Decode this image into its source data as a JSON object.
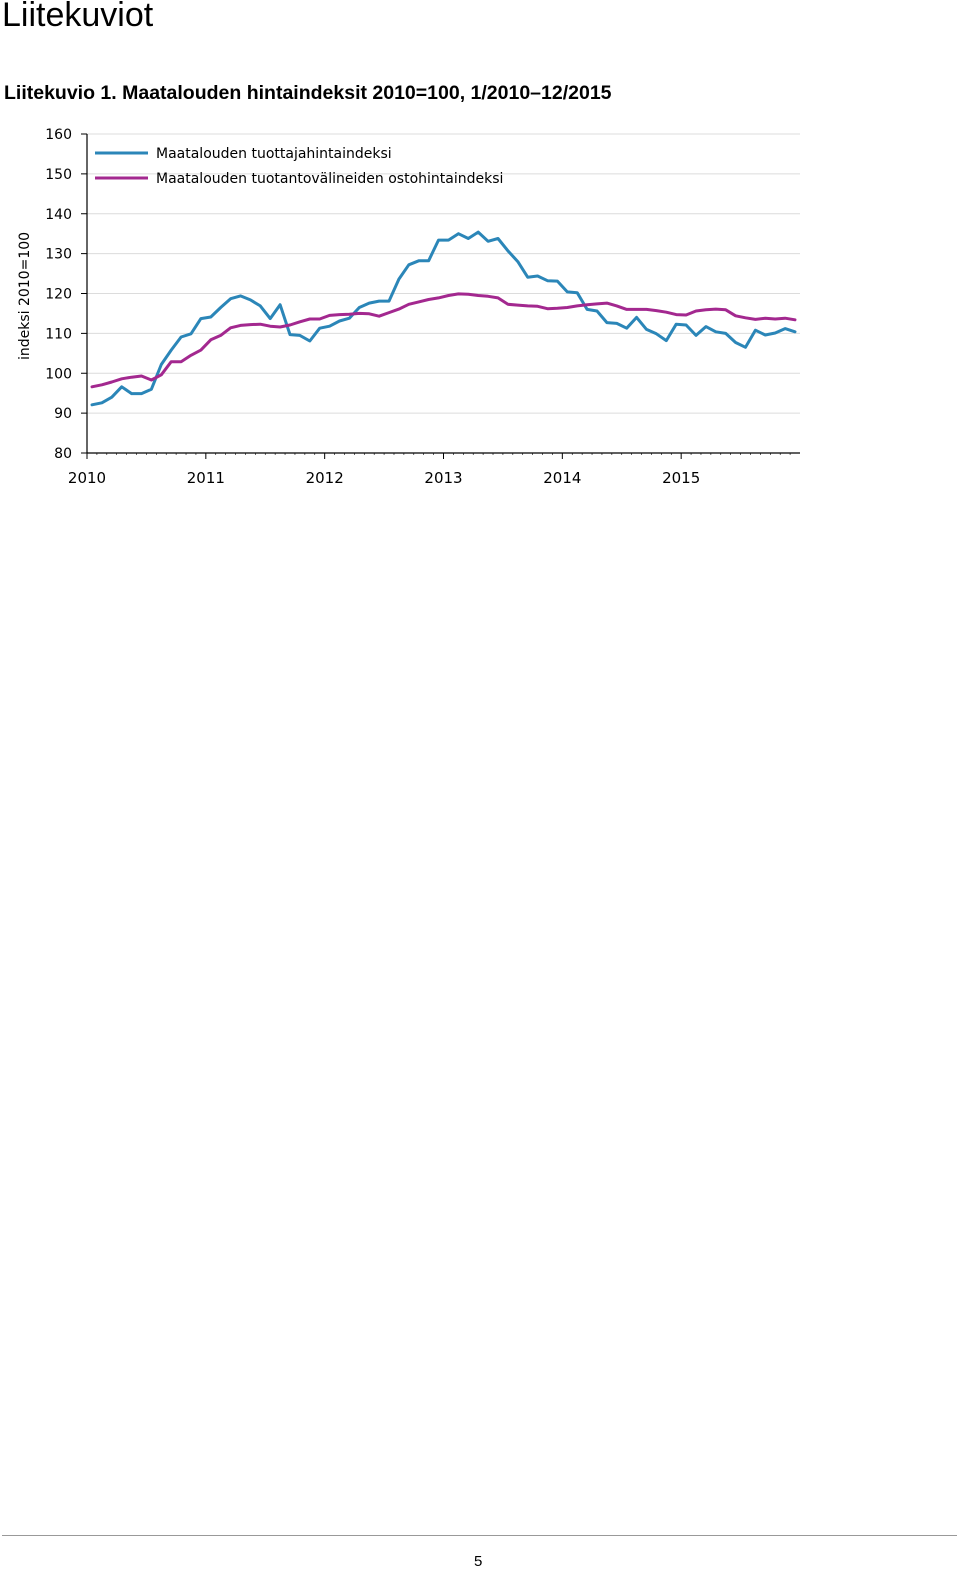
{
  "page": {
    "heading": "Liitekuviot",
    "caption": "Liitekuvio 1. Maatalouden hintaindeksit 2010=100, 1/2010–12/2015",
    "page_number": "5"
  },
  "chart_data": {
    "type": "line",
    "title": "",
    "xlabel": "",
    "ylabel": "indeksi 2010=100",
    "ylim": [
      80,
      160
    ],
    "yticks": [
      80,
      90,
      100,
      110,
      120,
      130,
      140,
      150,
      160
    ],
    "xticks": [
      "2010",
      "2011",
      "2012",
      "2013",
      "2014",
      "2015"
    ],
    "x_start": "2010-01",
    "x_end": "2015-12",
    "grid": true,
    "legend_position": "top-left",
    "series": [
      {
        "name": "Maatalouden tuottajahintaindeksi",
        "color": "#2b86b8",
        "values": [
          92.1,
          92.6,
          94.0,
          96.6,
          94.9,
          94.9,
          96.0,
          102.2,
          105.8,
          109.1,
          109.9,
          113.7,
          114.1,
          116.5,
          118.7,
          119.4,
          118.4,
          116.9,
          113.7,
          117.2,
          109.7,
          109.5,
          108.1,
          111.3,
          111.8,
          113.1,
          113.8,
          116.5,
          117.6,
          118.1,
          118.1,
          123.6,
          127.2,
          128.2,
          128.2,
          133.4,
          133.4,
          135.0,
          133.8,
          135.4,
          133.1,
          133.8,
          130.7,
          128.0,
          124.1,
          124.4,
          123.2,
          123.1,
          120.4,
          120.2,
          116.0,
          115.6,
          112.7,
          112.5,
          111.3,
          114.0,
          111.0,
          109.9,
          108.2,
          112.3,
          112.1,
          109.5,
          111.7,
          110.4,
          110.0,
          107.7,
          106.5,
          110.8,
          109.6,
          110.1,
          111.2,
          110.4
        ]
      },
      {
        "name": "Maatalouden tuotantovälineiden ostohintaindeksi",
        "color": "#a3288f",
        "values": [
          96.6,
          97.1,
          97.8,
          98.6,
          99.0,
          99.3,
          98.3,
          99.6,
          102.9,
          102.9,
          104.5,
          105.8,
          108.4,
          109.5,
          111.4,
          112.0,
          112.2,
          112.3,
          111.8,
          111.6,
          112.1,
          112.9,
          113.6,
          113.6,
          114.5,
          114.7,
          114.8,
          115.0,
          114.9,
          114.3,
          115.2,
          116.1,
          117.3,
          117.9,
          118.5,
          118.9,
          119.5,
          119.9,
          119.8,
          119.5,
          119.3,
          118.9,
          117.3,
          117.1,
          116.9,
          116.8,
          116.2,
          116.3,
          116.5,
          116.9,
          117.2,
          117.4,
          117.6,
          116.9,
          116.0,
          116.0,
          116.0,
          115.7,
          115.3,
          114.7,
          114.6,
          115.6,
          115.9,
          116.1,
          115.9,
          114.4,
          113.9,
          113.5,
          113.8,
          113.6,
          113.8,
          113.4
        ]
      }
    ]
  }
}
